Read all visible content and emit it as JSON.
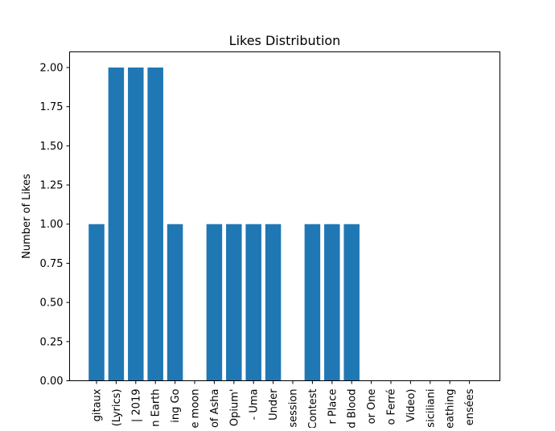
{
  "chart_data": {
    "type": "bar",
    "title": "Likes Distribution",
    "xlabel": "",
    "ylabel": "Number of Likes",
    "ylim": [
      0,
      2.1
    ],
    "yticks": [
      "0.00",
      "0.25",
      "0.50",
      "0.75",
      "1.00",
      "1.25",
      "1.50",
      "1.75",
      "2.00"
    ],
    "grid": false,
    "categories": [
      "gitaux",
      "(Lyrics)",
      "| 2019",
      "n Earth",
      "ing Go",
      "e moon",
      "of Asha",
      "Opium'",
      "- Uma",
      "Under",
      "session",
      "Contest",
      "r Place",
      "d Blood",
      "or One",
      "o Ferré",
      "Video)",
      "siciliani",
      "eathing",
      "ensées"
    ],
    "values": [
      1,
      2,
      2,
      2,
      1,
      0,
      1,
      1,
      1,
      1,
      0,
      1,
      1,
      1,
      0,
      0,
      0,
      0,
      0,
      0
    ],
    "bar_color": "#1f77b4"
  }
}
